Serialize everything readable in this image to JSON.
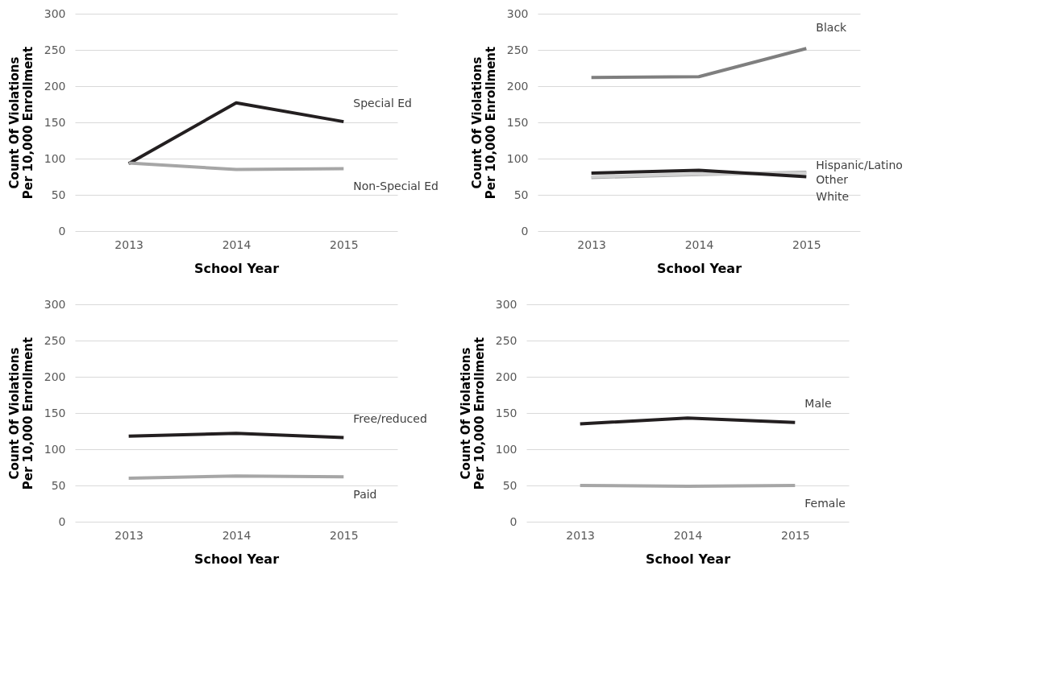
{
  "chart_data": [
    {
      "type": "line",
      "xlabel": "School Year",
      "ylabel": "Count Of Violations Per 10,000 Enrollment",
      "categories": [
        "2013",
        "2014",
        "2015"
      ],
      "ylim": [
        0,
        300
      ],
      "yticks": [
        0,
        50,
        100,
        150,
        200,
        250,
        300
      ],
      "grid": "y",
      "line_style": "solid",
      "marker": "none",
      "series": [
        {
          "name": "Special Ed",
          "color": "#231f20",
          "values": [
            93,
            177,
            151
          ]
        },
        {
          "name": "Non-Special Ed",
          "color": "#a6a6a6",
          "values": [
            94,
            85,
            86
          ]
        }
      ]
    },
    {
      "type": "line",
      "xlabel": "School Year",
      "ylabel": "Count Of Violations Per 10,000 Enrollment",
      "categories": [
        "2013",
        "2014",
        "2015"
      ],
      "ylim": [
        0,
        300
      ],
      "yticks": [
        0,
        50,
        100,
        150,
        200,
        250,
        300
      ],
      "grid": "y",
      "line_style": "solid",
      "marker": "none",
      "series": [
        {
          "name": "Black",
          "color": "#7f7f7f",
          "values": [
            212,
            213,
            252
          ]
        },
        {
          "name": "Hispanic/Latino",
          "color": "#a6a6a6",
          "values": [
            74,
            78,
            81
          ]
        },
        {
          "name": "Other",
          "color": "#d0d0d0",
          "values": [
            75,
            79,
            80
          ]
        },
        {
          "name": "White",
          "color": "#231f20",
          "values": [
            80,
            84,
            75
          ]
        }
      ]
    },
    {
      "type": "line",
      "xlabel": "School Year",
      "ylabel": "Count Of Violations Per 10,000 Enrollment",
      "categories": [
        "2013",
        "2014",
        "2015"
      ],
      "ylim": [
        0,
        300
      ],
      "yticks": [
        0,
        50,
        100,
        150,
        200,
        250,
        300
      ],
      "grid": "y",
      "line_style": "solid",
      "marker": "none",
      "series": [
        {
          "name": "Free/reduced",
          "color": "#231f20",
          "values": [
            118,
            122,
            116
          ]
        },
        {
          "name": "Paid",
          "color": "#a6a6a6",
          "values": [
            60,
            63,
            62
          ]
        }
      ]
    },
    {
      "type": "line",
      "xlabel": "School Year",
      "ylabel": "Count Of Violations Per 10,000 Enrollment",
      "categories": [
        "2013",
        "2014",
        "2015"
      ],
      "ylim": [
        0,
        300
      ],
      "yticks": [
        0,
        50,
        100,
        150,
        200,
        250,
        300
      ],
      "grid": "y",
      "line_style": "solid",
      "marker": "none",
      "series": [
        {
          "name": "Male",
          "color": "#231f20",
          "values": [
            135,
            143,
            137
          ]
        },
        {
          "name": "Female",
          "color": "#a6a6a6",
          "values": [
            50,
            49,
            50
          ]
        }
      ]
    }
  ]
}
